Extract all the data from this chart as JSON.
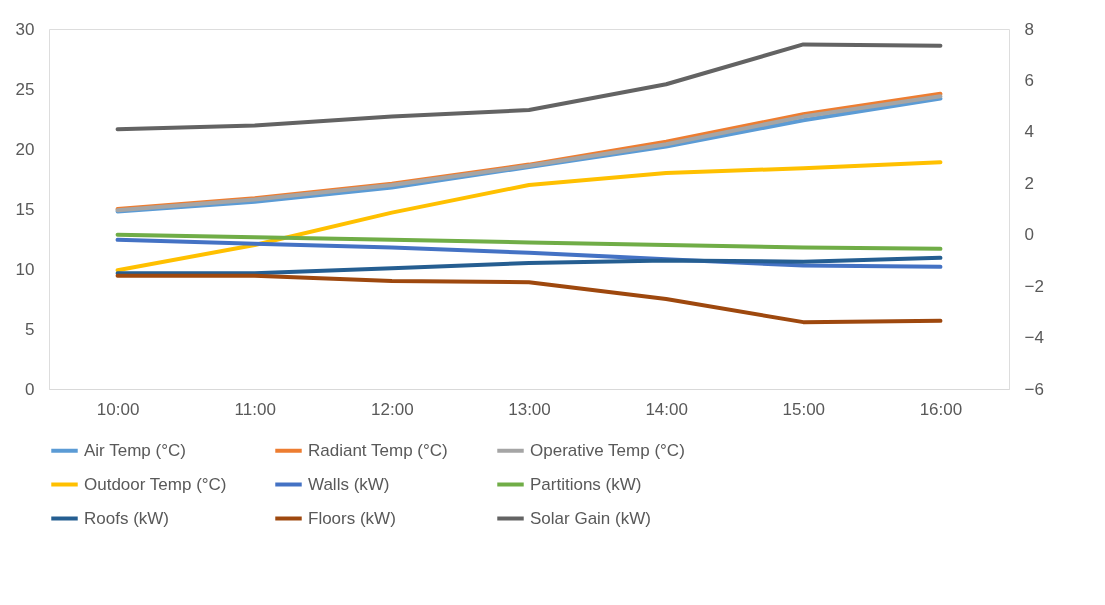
{
  "chart_data": {
    "type": "line",
    "categories": [
      "10:00",
      "11:00",
      "12:00",
      "13:00",
      "14:00",
      "15:00",
      "16:00"
    ],
    "series": [
      {
        "name": "Air Temp (°C)",
        "color": "#5b9bd5",
        "values": [
          14.8,
          15.6,
          16.8,
          18.5,
          20.2,
          22.4,
          24.2
        ]
      },
      {
        "name": "Radiant Temp (°C)",
        "color": "#ed7d31",
        "values": [
          15.0,
          15.9,
          17.1,
          18.7,
          20.6,
          22.9,
          24.6
        ]
      },
      {
        "name": "Operative Temp (°C)",
        "color": "#a5a5a5",
        "values": [
          14.9,
          15.8,
          17.0,
          18.6,
          20.4,
          22.7,
          24.4
        ]
      },
      {
        "name": "Outdoor Temp (°C)",
        "color": "#ffc000",
        "values": [
          9.9,
          12.0,
          14.7,
          17.0,
          18.0,
          18.4,
          18.9
        ]
      },
      {
        "name": "Walls (kW)",
        "color": "#4472c4",
        "axis": "y2",
        "values": [
          -0.2,
          -0.35,
          -0.5,
          -0.7,
          -0.95,
          -1.2,
          -1.25
        ]
      },
      {
        "name": "Partitions (kW)",
        "color": "#70ad47",
        "axis": "y2",
        "values": [
          0.0,
          -0.1,
          -0.2,
          -0.3,
          -0.4,
          -0.5,
          -0.55
        ]
      },
      {
        "name": "Roofs (kW)",
        "color": "#255e91",
        "axis": "y2",
        "values": [
          -1.5,
          -1.5,
          -1.3,
          -1.1,
          -1.0,
          -1.05,
          -0.9
        ]
      },
      {
        "name": "Floors (kW)",
        "color": "#9e480e",
        "axis": "y2",
        "values": [
          -1.6,
          -1.6,
          -1.8,
          -1.85,
          -2.5,
          -3.4,
          -3.35
        ]
      },
      {
        "name": "Solar Gain (kW)",
        "color": "#636363",
        "axis": "y2",
        "values": [
          4.1,
          4.25,
          4.6,
          4.85,
          5.85,
          7.4,
          7.35
        ]
      }
    ],
    "ylim": [
      0,
      30
    ],
    "yticks": [
      0,
      5,
      10,
      15,
      20,
      25,
      30
    ],
    "y2lim": [
      -6,
      8
    ],
    "y2ticks": [
      -6,
      -4,
      -2,
      0,
      2,
      4,
      6,
      8
    ],
    "grid": false,
    "legend": "bottom",
    "line_style": "solid"
  }
}
